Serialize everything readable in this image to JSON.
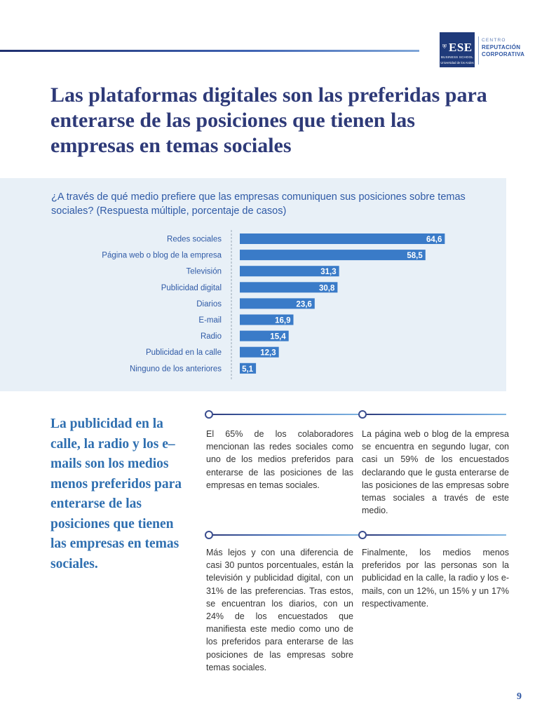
{
  "logo": {
    "ese": "ESE",
    "business_school": "BUSINESS SCHOOL",
    "university": "Universidad de los Andes",
    "centro": "CENTRO",
    "reputacion": "REPUTACIÓN",
    "corporativa": "CORPORATIVA",
    "brand_color": "#1f3a7a"
  },
  "title": "Las plataformas digitales son las preferidas para enterarse de las posiciones que tienen las empresas en temas sociales",
  "chart_question": "¿A través de qué medio prefiere que las empresas comuniquen sus posiciones sobre temas sociales? (Respuesta múltiple, porcentaje de casos)",
  "chart_data": {
    "type": "bar",
    "orientation": "horizontal",
    "categories": [
      "Redes sociales",
      "Página web o blog de la empresa",
      "Televisión",
      "Publicidad digital",
      "Diarios",
      "E-mail",
      "Radio",
      "Publicidad en la calle",
      "Ninguno de los anteriores"
    ],
    "values": [
      64.6,
      58.5,
      31.3,
      30.8,
      23.6,
      16.9,
      15.4,
      12.3,
      5.1
    ],
    "value_labels": [
      "64,6",
      "58,5",
      "31,3",
      "30,8",
      "23,6",
      "16,9",
      "15,4",
      "12,3",
      "5,1"
    ],
    "xlim": [
      0,
      70
    ],
    "grid": false,
    "bar_color": "#3a7bc8"
  },
  "callout": "La publicidad en la calle, la radio y los e–mails son los medios menos preferidos para enterarse de las posiciones que tienen las empresas en temas sociales.",
  "paragraphs": {
    "p1": "El 65% de los colaboradores mencionan las redes sociales como uno de los medios preferidos para enterarse de las posiciones de las empresas en temas sociales.",
    "p2": "La página web o blog de la empresa se encuentra en segundo lugar, con casi un 59% de los encuestados declarando que le gusta enterarse de las posiciones de las empresas sobre temas sociales a través de este medio.",
    "p3": "Más lejos y con una diferencia de casi 30 puntos porcentuales, están la televisión y publicidad digital, con un 31% de las preferencias. Tras estos, se encuentran los diarios, con un 24% de los encuestados que manifiesta este medio como uno de los preferidos para enterarse de las posiciones de las empresas sobre temas sociales.",
    "p4": "Finalmente, los medios menos preferidos por las personas son la publicidad en la calle, la radio y los e-mails, con un 12%, un 15% y un 17% respectivamente."
  },
  "page_number": "9"
}
